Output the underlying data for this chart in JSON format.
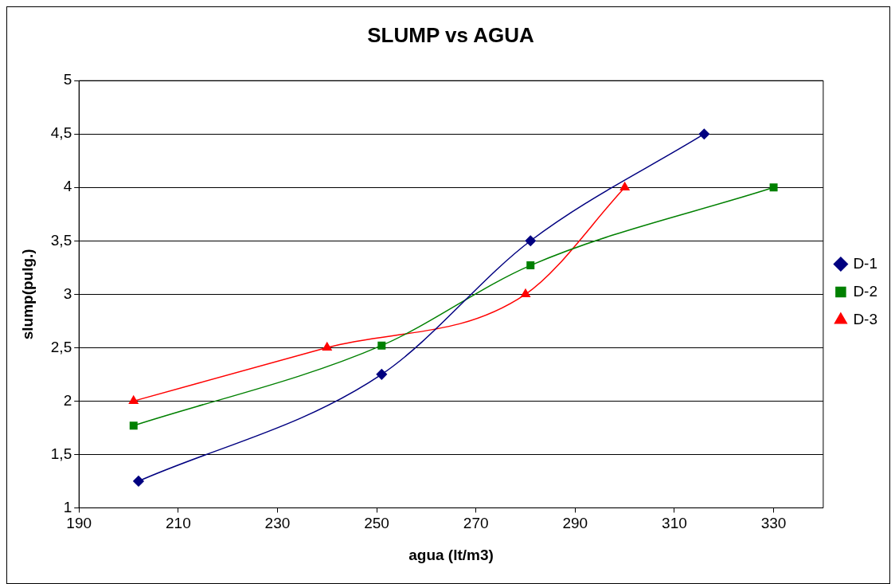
{
  "chart_data": {
    "type": "line",
    "title": "SLUMP vs AGUA",
    "xlabel": "agua (lt/m3)",
    "ylabel": "slump(pulg.)",
    "xlim": [
      190,
      340
    ],
    "xticks": [
      190,
      210,
      230,
      250,
      270,
      290,
      310,
      330
    ],
    "ylim": [
      1,
      5
    ],
    "yticks": [
      1,
      {
        "value": 1.5,
        "label": "1,5"
      },
      2,
      {
        "value": 2.5,
        "label": "2,5"
      },
      3,
      {
        "value": 3.5,
        "label": "3,5"
      },
      4,
      {
        "value": 4.5,
        "label": "4,5"
      },
      5
    ],
    "grid": "y",
    "legend": "right",
    "series": [
      {
        "name": "D-1",
        "color": "#000080",
        "marker": "diamond",
        "x": [
          202,
          251,
          281,
          316
        ],
        "values": [
          1.25,
          2.25,
          3.5,
          4.5
        ]
      },
      {
        "name": "D-2",
        "color": "#008000",
        "marker": "square",
        "x": [
          201,
          251,
          281,
          330
        ],
        "values": [
          1.77,
          2.52,
          3.27,
          4
        ]
      },
      {
        "name": "D-3",
        "color": "#ff0000",
        "marker": "triangle",
        "x": [
          201,
          240,
          280,
          300
        ],
        "values": [
          2,
          2.5,
          3,
          4
        ]
      }
    ]
  }
}
